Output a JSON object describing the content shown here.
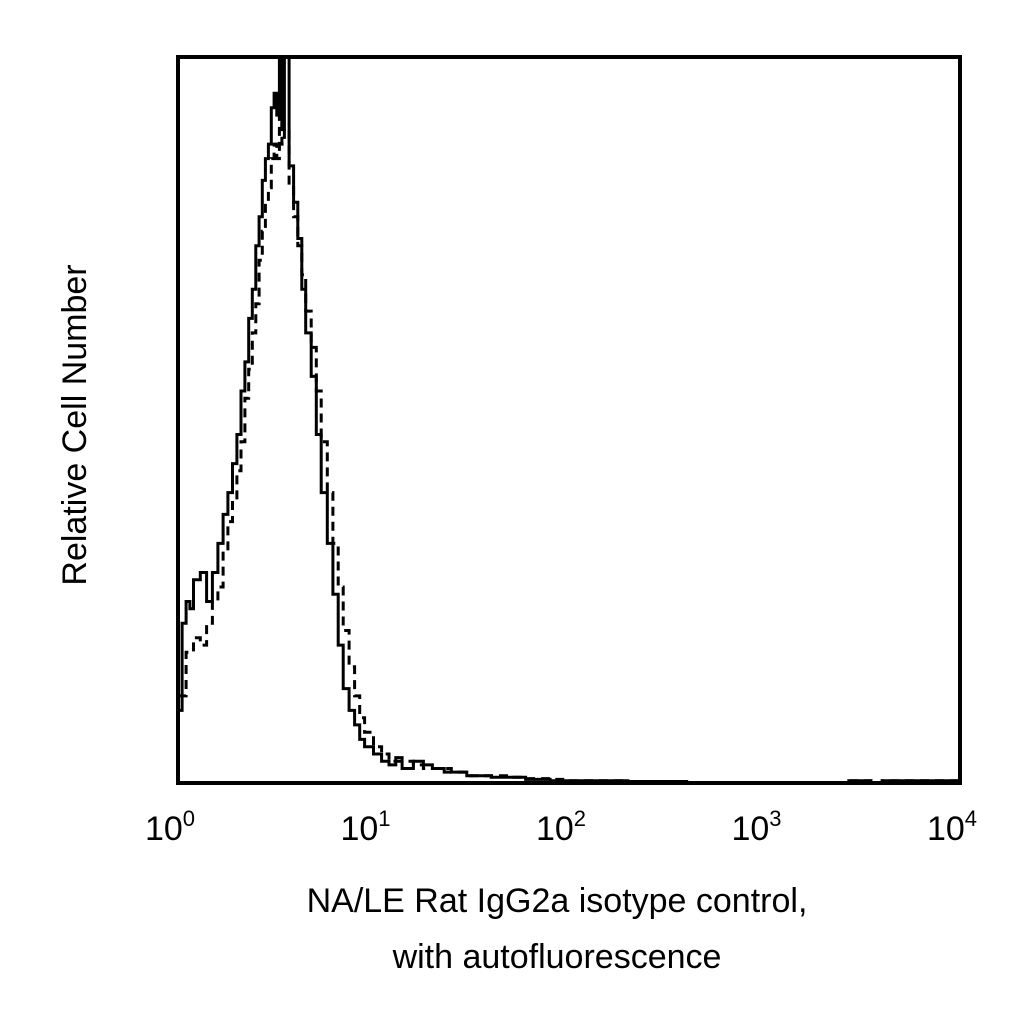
{
  "chart_data": {
    "type": "line",
    "title": "",
    "xlabel_lines": [
      "NA/LE Rat IgG2a isotype control,",
      "with autofluorescence"
    ],
    "ylabel": "Relative Cell Number",
    "x_scale": "log",
    "xlim": [
      1,
      10000
    ],
    "ylim": [
      0,
      100
    ],
    "grid": false,
    "legend": "none",
    "x_ticks": [
      {
        "value": 1,
        "base": "10",
        "exp": "0"
      },
      {
        "value": 10,
        "base": "10",
        "exp": "1"
      },
      {
        "value": 100,
        "base": "10",
        "exp": "2"
      },
      {
        "value": 1000,
        "base": "10",
        "exp": "3"
      },
      {
        "value": 10000,
        "base": "10",
        "exp": "4"
      }
    ],
    "series": [
      {
        "style": "solid",
        "color": "#000000",
        "x": [
          1.0,
          1.05,
          1.1,
          1.15,
          1.2,
          1.3,
          1.4,
          1.5,
          1.6,
          1.7,
          1.8,
          1.9,
          2.0,
          2.1,
          2.2,
          2.3,
          2.4,
          2.5,
          2.6,
          2.7,
          2.8,
          2.9,
          3.0,
          3.1,
          3.2,
          3.3,
          3.4,
          3.5,
          3.7,
          3.9,
          4.1,
          4.3,
          4.5,
          4.8,
          5.1,
          5.4,
          5.8,
          6.2,
          6.6,
          7.0,
          7.5,
          8.0,
          8.5,
          9.0,
          10,
          11,
          12,
          13,
          14,
          16,
          18,
          20,
          23,
          26,
          30,
          35,
          40,
          50,
          60,
          70,
          80,
          100,
          150,
          200,
          400,
          1000,
          2700,
          3500,
          4000,
          10000
        ],
        "y": [
          10,
          22,
          25,
          24,
          28,
          29,
          25,
          29,
          33,
          37,
          40,
          44,
          48,
          54,
          58,
          64,
          68,
          74,
          78,
          83,
          86,
          88,
          93,
          95,
          92,
          100,
          90,
          100,
          85,
          80,
          75,
          68,
          62,
          56,
          48,
          40,
          33,
          26,
          19,
          13,
          10,
          8,
          6,
          5,
          4,
          3,
          2.5,
          3.5,
          2,
          3,
          2.5,
          2,
          1.5,
          1.5,
          1,
          1,
          0.8,
          0.8,
          0.5,
          0.5,
          0.3,
          0.3,
          0.3,
          0.2,
          0,
          0,
          0.3,
          0,
          0.3,
          0
        ]
      },
      {
        "style": "dashed",
        "color": "#000000",
        "x": [
          1.0,
          1.1,
          1.2,
          1.3,
          1.4,
          1.5,
          1.6,
          1.7,
          1.8,
          1.9,
          2.0,
          2.1,
          2.2,
          2.3,
          2.4,
          2.5,
          2.6,
          2.7,
          2.8,
          2.9,
          3.0,
          3.1,
          3.2,
          3.3,
          3.4,
          3.5,
          3.7,
          3.9,
          4.1,
          4.3,
          4.5,
          4.8,
          5.1,
          5.4,
          5.8,
          6.2,
          6.6,
          7.0,
          7.5,
          8.0,
          8.5,
          9.0,
          10,
          11,
          12,
          14,
          16,
          18,
          20,
          25,
          30,
          40,
          50,
          60,
          80,
          100,
          150,
          200,
          400,
          1000,
          2700,
          3500,
          4000,
          10000
        ],
        "y": [
          12,
          18,
          20,
          19,
          22,
          25,
          27,
          32,
          36,
          39,
          43,
          47,
          53,
          57,
          62,
          66,
          72,
          76,
          80,
          82,
          86,
          88,
          86,
          92,
          88,
          90,
          82,
          78,
          74,
          70,
          65,
          60,
          54,
          47,
          40,
          33,
          27,
          21,
          16,
          12,
          9,
          7,
          5,
          4,
          3,
          3,
          2.5,
          2,
          2,
          1.5,
          1,
          1,
          0.8,
          0.6,
          0.5,
          0.3,
          0.3,
          0.2,
          0,
          0,
          0.3,
          0,
          0.3,
          0
        ]
      }
    ]
  }
}
